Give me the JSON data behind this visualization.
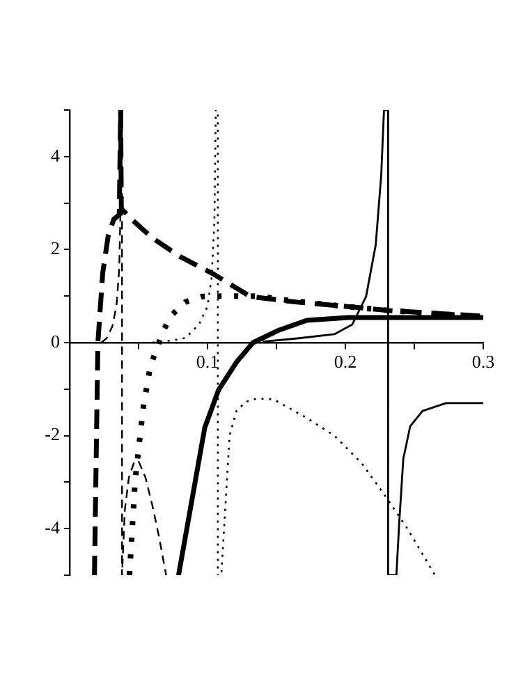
{
  "chart_data": {
    "type": "line",
    "xlim": [
      0,
      0.3
    ],
    "ylim": [
      -5,
      5
    ],
    "xticks": [
      {
        "value": 0.05,
        "label": null
      },
      0.1,
      {
        "value": 0.15,
        "label": null
      },
      0.2,
      {
        "value": 0.25,
        "label": null
      },
      0.3
    ],
    "yticks": [
      {
        "value": -5,
        "label": null
      },
      -4,
      {
        "value": -3,
        "label": null
      },
      -2,
      {
        "value": -1,
        "label": null
      },
      0,
      {
        "value": 1,
        "label": null
      },
      2,
      {
        "value": 3,
        "label": null
      },
      4,
      {
        "value": 5,
        "label": null
      }
    ],
    "grid": false,
    "legend": false,
    "marker": "none",
    "series": [
      {
        "color": "#000000",
        "line_style": "dashed",
        "x": [
          0.018,
          0.0205,
          0.024,
          0.028,
          0.032,
          0.036,
          0.037,
          0.0375,
          0.045,
          0.06,
          0.08,
          0.104,
          0.131,
          0.165,
          0.2,
          0.232,
          0.265,
          0.3
        ],
        "values": [
          -5,
          0,
          1.5,
          2.3,
          2.65,
          2.75,
          5,
          2.88,
          2.65,
          2.25,
          1.85,
          1.48,
          0.99,
          0.87,
          0.78,
          0.69,
          0.63,
          0.57
        ]
      },
      {
        "color": "#000000",
        "line_style": "dashed",
        "x": [
          0.023,
          0.027,
          0.031,
          0.034,
          0.036,
          0.037,
          0.0378,
          0.038,
          0.038,
          0.04,
          0.043,
          0.047,
          0.05,
          0.055,
          0.06,
          0.065,
          0.07
        ],
        "values": [
          0,
          0.1,
          0.35,
          0.8,
          1.6,
          3,
          5,
          5,
          -5,
          -3.6,
          -2.9,
          -2.55,
          -2.55,
          -2.9,
          -3.5,
          -4.2,
          -5
        ]
      },
      {
        "color": "#000000",
        "line_style": "dotted",
        "x": [
          0.0434,
          0.0475,
          0.0505,
          0.0535,
          0.0586,
          0.0626,
          0.0677,
          0.0737,
          0.0838,
          0.096,
          0.109,
          0.124,
          0.138,
          0.152,
          0.199,
          0.232,
          0.265,
          0.3
        ],
        "values": [
          -5,
          -2.97,
          -2.16,
          -1.38,
          -0.5,
          -0.18,
          0.24,
          0.58,
          0.87,
          0.99,
          1.0,
          1.0,
          1.0,
          0.93,
          0.78,
          0.69,
          0.62,
          0.55
        ]
      },
      {
        "color": "#000000",
        "line_style": "dotted",
        "x": [
          0.06,
          0.075,
          0.084,
          0.094,
          0.1,
          0.103,
          0.105,
          0.106,
          0.1075,
          0.1075,
          0.11,
          0.113,
          0.116,
          0.121,
          0.128,
          0.136,
          0.148,
          0.172,
          0.192,
          0.212,
          0.229,
          0.245,
          0.265
        ],
        "values": [
          0,
          0.05,
          0.1,
          0.4,
          0.78,
          1.4,
          2.6,
          5,
          5,
          -5,
          -5,
          -3.5,
          -2,
          -1.47,
          -1.27,
          -1.2,
          -1.22,
          -1.62,
          -2,
          -2.6,
          -3.3,
          -4,
          -5
        ]
      },
      {
        "color": "#000000",
        "line_style": "solid",
        "x": [
          0.079,
          0.088,
          0.098,
          0.108,
          0.121,
          0.133,
          0.152,
          0.172,
          0.202,
          0.25,
          0.3
        ],
        "values": [
          -5,
          -3.5,
          -1.83,
          -1.02,
          -0.42,
          0,
          0.27,
          0.48,
          0.54,
          0.54,
          0.54
        ]
      },
      {
        "color": "#000000",
        "line_style": "solid",
        "x": [
          0.14,
          0.165,
          0.192,
          0.205,
          0.215,
          0.222,
          0.226,
          0.228,
          0.231,
          0.231,
          0.237,
          0.239,
          0.242,
          0.247,
          0.256,
          0.273,
          0.3
        ],
        "values": [
          0.02,
          0.09,
          0.18,
          0.39,
          0.99,
          2.1,
          3.6,
          5,
          5,
          -5,
          -5,
          -3.9,
          -2.5,
          -1.8,
          -1.47,
          -1.3,
          -1.3
        ]
      }
    ]
  }
}
